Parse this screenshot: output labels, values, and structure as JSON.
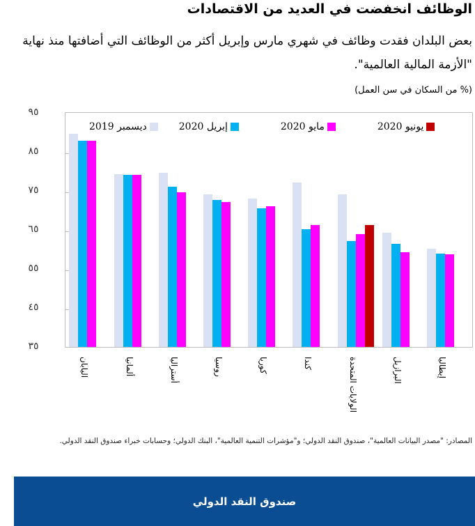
{
  "header": {
    "title": "الوظائف انخفضت في العديد من الاقتصادات",
    "subtitle": "بعض البلدان فقدت وظائف في شهري مارس وإبريل أكثر من الوظائف التي أضافتها منذ نهاية \"الأزمة المالية العالمية\".",
    "unit": "(% من السكان في سن العمل)"
  },
  "chart_data": {
    "type": "bar",
    "title": "الوظائف انخفضت في العديد من الاقتصادات",
    "ylabel": "% من السكان في سن العمل",
    "ylim": [
      35,
      95
    ],
    "yticks": [
      "٩٥",
      "٨٥",
      "٧٥",
      "٦٥",
      "٥٥",
      "٤٥",
      "٣٥"
    ],
    "ytick_values": [
      95,
      85,
      75,
      65,
      55,
      45,
      35
    ],
    "legend_position": "top",
    "grid": false,
    "categories": [
      "اليابان",
      "ألمانيا",
      "أستراليا",
      "روسيا",
      "كوريا",
      "كندا",
      "الولايات المتحدة",
      "البرازيل",
      "إيطاليا"
    ],
    "series": [
      {
        "name": "ديسمبر 2019",
        "color": "#d9e1f2",
        "values": [
          89.6,
          79.3,
          79.6,
          74.1,
          73.0,
          77.1,
          74.1,
          64.2,
          60.2
        ]
      },
      {
        "name": "إبريل 2020",
        "color": "#00b0f0",
        "values": [
          87.9,
          79.1,
          76.1,
          72.6,
          70.5,
          65.2,
          62.2,
          61.5,
          58.9
        ]
      },
      {
        "name": "مايو 2020",
        "color": "#ff00ff",
        "values": [
          87.9,
          79.1,
          74.6,
          72.1,
          71.1,
          66.3,
          64.0,
          59.2,
          58.7
        ]
      },
      {
        "name": "يونيو 2020",
        "color": "#c00000",
        "values": [
          null,
          null,
          null,
          null,
          null,
          null,
          66.3,
          null,
          null
        ]
      }
    ]
  },
  "legend": [
    {
      "label": "ديسمبر 2019",
      "color": "#d9e1f2"
    },
    {
      "label": "إبريل 2020",
      "color": "#00b0f0"
    },
    {
      "label": "مايو 2020",
      "color": "#ff00ff"
    },
    {
      "label": "يونيو 2020",
      "color": "#c00000"
    }
  ],
  "source": "المصادر: \"مصدر البيانات العالمية\"، صندوق النقد الدولي؛ و\"مؤشرات التنمية العالمية\"، البنك الدولي؛ وحسابات خبراء صندوق النقد الدولي.",
  "footer": {
    "label": "صندوق النقد الدولي",
    "color": "#0b4d92"
  }
}
